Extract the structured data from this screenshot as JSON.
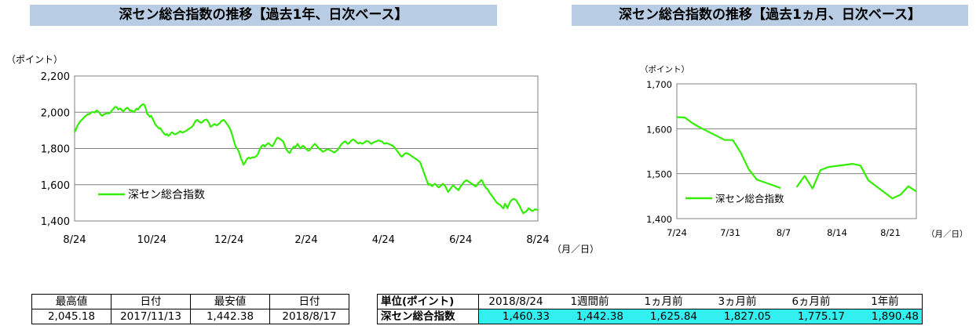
{
  "year_panel": {
    "title": "深セン総合指数の推移【過去1年、日次ベース】"
  },
  "month_panel": {
    "title": "深セン総合指数の推移【過去1ヵ月、日次ベース】"
  },
  "chart_data": [
    {
      "type": "line",
      "title": "深セン総合指数の推移【過去1年、日次ベース】",
      "ylabel": "（ポイント）",
      "xlabel": "（月／日）",
      "ylim": [
        1400,
        2200
      ],
      "yticks": [
        "1,400",
        "1,600",
        "1,800",
        "2,000",
        "2,200"
      ],
      "ytick_values": [
        1400,
        1600,
        1800,
        2000,
        2200
      ],
      "xticks": [
        "8/24",
        "10/24",
        "12/24",
        "2/24",
        "4/24",
        "6/24",
        "8/24"
      ],
      "grid": true,
      "legend": "left",
      "series": [
        {
          "name": "深セン総合指数",
          "color": "#33ee00",
          "values": [
            1890.48,
            1905,
            1925,
            1935,
            1948,
            1955,
            1962,
            1970,
            1978,
            1982,
            1990,
            1988,
            1995,
            2000,
            2002,
            1998,
            2005,
            2010,
            2003,
            1995,
            1985,
            1980,
            1988,
            1990,
            1993,
            1995,
            1993,
            1998,
            2008,
            2015,
            2025,
            2030,
            2028,
            2015,
            2020,
            2018,
            2010,
            2005,
            2015,
            2022,
            2025,
            2018,
            2008,
            2010,
            2005,
            2000,
            2012,
            2020,
            2015,
            2025,
            2035,
            2040,
            2045.18,
            2040,
            2020,
            1990,
            1985,
            1975,
            1980,
            1965,
            1950,
            1935,
            1925,
            1918,
            1910,
            1912,
            1900,
            1890,
            1880,
            1875,
            1880,
            1870,
            1875,
            1885,
            1890,
            1882,
            1878,
            1880,
            1885,
            1890,
            1895,
            1890,
            1888,
            1892,
            1895,
            1900,
            1905,
            1910,
            1915,
            1920,
            1930,
            1945,
            1955,
            1958,
            1950,
            1945,
            1942,
            1948,
            1955,
            1958,
            1960,
            1950,
            1938,
            1920,
            1925,
            1930,
            1935,
            1930,
            1928,
            1935,
            1940,
            1950,
            1955,
            1958,
            1950,
            1940,
            1930,
            1918,
            1905,
            1885,
            1860,
            1835,
            1810,
            1800,
            1790,
            1770,
            1745,
            1730,
            1710,
            1720,
            1735,
            1745,
            1750,
            1745,
            1748,
            1752,
            1750,
            1755,
            1760,
            1770,
            1790,
            1805,
            1815,
            1820,
            1810,
            1818,
            1825,
            1830,
            1822,
            1815,
            1812,
            1825,
            1840,
            1855,
            1860,
            1855,
            1850,
            1845,
            1840,
            1820,
            1800,
            1790,
            1780,
            1775,
            1790,
            1800,
            1810,
            1805,
            1815,
            1825,
            1812,
            1800,
            1808,
            1815,
            1808,
            1800,
            1795,
            1788,
            1790,
            1800,
            1810,
            1818,
            1825,
            1818,
            1810,
            1800,
            1795,
            1790,
            1782,
            1785,
            1790,
            1795,
            1795,
            1792,
            1790,
            1785,
            1780,
            1778,
            1785,
            1790,
            1800,
            1810,
            1822,
            1830,
            1835,
            1840,
            1832,
            1825,
            1830,
            1838,
            1845,
            1850,
            1845,
            1840,
            1832,
            1828,
            1832,
            1830,
            1826,
            1830,
            1835,
            1842,
            1840,
            1838,
            1830,
            1825,
            1832,
            1835,
            1838,
            1840,
            1845,
            1843,
            1840,
            1838,
            1830,
            1826,
            1830,
            1828,
            1825,
            1822,
            1818,
            1815,
            1808,
            1800,
            1790,
            1780,
            1770,
            1760,
            1755,
            1762,
            1770,
            1775,
            1772,
            1770,
            1765,
            1760,
            1755,
            1750,
            1745,
            1740,
            1735,
            1730,
            1720,
            1700,
            1680,
            1660,
            1640,
            1620,
            1600,
            1605,
            1598,
            1592,
            1600,
            1605,
            1598,
            1590,
            1585,
            1592,
            1598,
            1605,
            1600,
            1590,
            1575,
            1560,
            1570,
            1580,
            1590,
            1595,
            1588,
            1580,
            1575,
            1570,
            1585,
            1595,
            1605,
            1615,
            1620,
            1625,
            1620,
            1615,
            1610,
            1605,
            1600,
            1595,
            1590,
            1600,
            1610,
            1615,
            1625.84,
            1620,
            1600,
            1590,
            1580,
            1575,
            1560,
            1550,
            1540,
            1530,
            1520,
            1510,
            1500,
            1495,
            1490,
            1485,
            1475,
            1470,
            1495,
            1485,
            1470,
            1490,
            1505,
            1515,
            1520,
            1522,
            1518,
            1510,
            1495,
            1485,
            1470,
            1455,
            1442.38,
            1448,
            1452,
            1460,
            1470,
            1465,
            1458,
            1455,
            1460,
            1465,
            1462,
            1460.33
          ]
        }
      ]
    },
    {
      "type": "line",
      "title": "深セン総合指数の推移【過去1ヵ月、日次ベース】",
      "ylabel": "（ポイント）",
      "xlabel": "（月／日）",
      "ylim": [
        1400,
        1700
      ],
      "yticks": [
        "1,400",
        "1,500",
        "1,600",
        "1,700"
      ],
      "ytick_values": [
        1400,
        1500,
        1600,
        1700
      ],
      "xticks": [
        "7/24",
        "7/31",
        "8/7",
        "8/14",
        "8/21"
      ],
      "x_range_days": [
        0,
        30
      ],
      "grid": true,
      "legend": "left",
      "series": [
        {
          "name": "深セン総合指数",
          "color": "#33ee00",
          "segments": [
            {
              "x": [
                0,
                1,
                2,
                3,
                6,
                7,
                8,
                9,
                10,
                13
              ],
              "y": [
                1625.84,
                1625,
                1612,
                1602,
                1575,
                1575,
                1547,
                1510,
                1487,
                1468
              ]
            },
            {
              "x": [
                15,
                16,
                17,
                18,
                19,
                22,
                23,
                24,
                27,
                28,
                29,
                30
              ],
              "y": [
                1470,
                1495,
                1467,
                1508,
                1515,
                1522,
                1518,
                1485,
                1445,
                1453,
                1472,
                1460.33
              ]
            }
          ]
        }
      ]
    }
  ],
  "extremes_table": {
    "headers": [
      "最高値",
      "日付",
      "最安値",
      "日付"
    ],
    "values": [
      "2,045.18",
      "2017/11/13",
      "1,442.38",
      "2018/8/17"
    ]
  },
  "change_table": {
    "headers": [
      "単位(ポイント)",
      "2018/8/24",
      "1週間前",
      "1ヵ月前",
      "3ヵ月前",
      "6ヵ月前",
      "1年前"
    ],
    "row_label": "深セン総合指数",
    "values": [
      "1,460.33",
      "1,442.38",
      "1,625.84",
      "1,827.05",
      "1,775.17",
      "1,890.48"
    ],
    "highlight_color": "#33f0f0"
  }
}
